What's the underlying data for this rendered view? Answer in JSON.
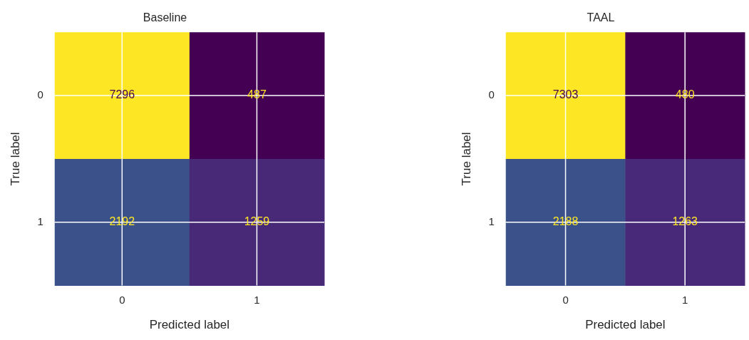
{
  "chart_data": [
    {
      "type": "heatmap",
      "title": "Baseline",
      "xlabel": "Predicted label",
      "ylabel": "True label",
      "categories": [
        "0",
        "1"
      ],
      "y_categories": [
        "0",
        "1"
      ],
      "cells": [
        [
          7296,
          487
        ],
        [
          2192,
          1259
        ]
      ],
      "data_labels": true,
      "grid": true
    },
    {
      "type": "heatmap",
      "title": "TAAL",
      "xlabel": "Predicted label",
      "ylabel": "True label",
      "categories": [
        "0",
        "1"
      ],
      "y_categories": [
        "0",
        "1"
      ],
      "cells": [
        [
          7303,
          480
        ],
        [
          2188,
          1263
        ]
      ],
      "data_labels": true,
      "grid": true
    }
  ]
}
